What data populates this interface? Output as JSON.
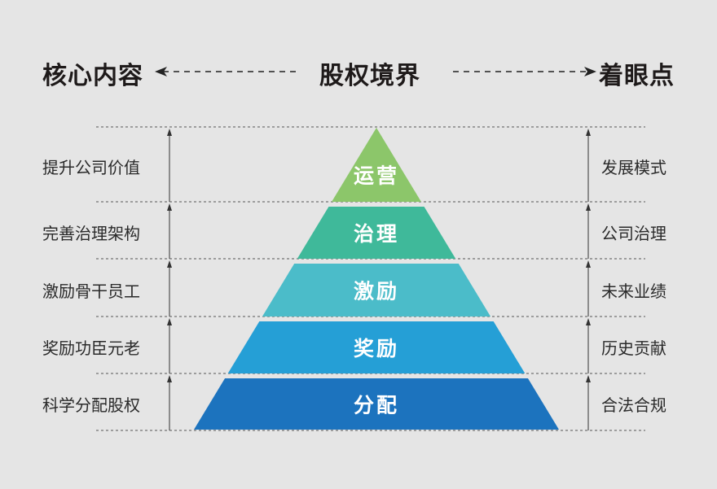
{
  "header": {
    "left": "核心内容",
    "center": "股权境界",
    "right": "着眼点"
  },
  "tiers": [
    {
      "label": "运营",
      "left": "提升公司价值",
      "right": "发展模式",
      "color": "#8cc66a"
    },
    {
      "label": "治理",
      "left": "完善治理架构",
      "right": "公司治理",
      "color": "#3fb99a"
    },
    {
      "label": "激励",
      "left": "激励骨干员工",
      "right": "未来业绩",
      "color": "#4bbcc9"
    },
    {
      "label": "奖励",
      "left": "奖励功臣元老",
      "right": "历史贡献",
      "color": "#259fd6"
    },
    {
      "label": "分配",
      "left": "科学分配股权",
      "right": "合法合规",
      "color": "#1c73be"
    }
  ]
}
